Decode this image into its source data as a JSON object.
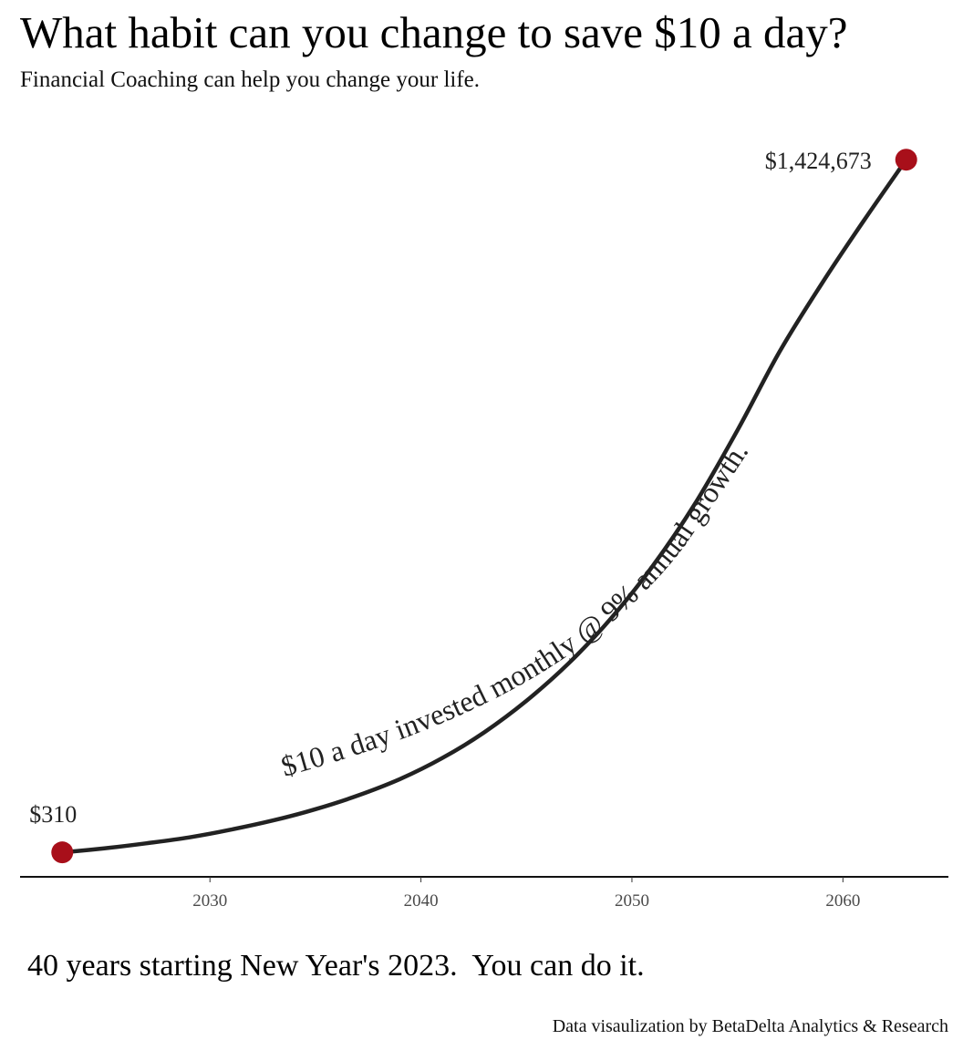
{
  "page": {
    "title": "What habit can you change to save $10 a day?",
    "subtitle": "Financial Coaching can help you change your life.",
    "caption": "40 years starting New Year's 2023.  You can do it.",
    "credit": "Data visaulization by BetaDelta Analytics & Research"
  },
  "chart_data": {
    "type": "line",
    "title": "What habit can you change to save $10 a day?",
    "subtitle": "Financial Coaching can help you change your life.",
    "xlabel": "",
    "ylabel": "",
    "xlim": [
      2021,
      2065
    ],
    "ylim": [
      -50000,
      1500000
    ],
    "x_ticks": [
      2030,
      2040,
      2050,
      2060
    ],
    "x_tick_labels": [
      "2030",
      "2040",
      "2050",
      "2060"
    ],
    "y_axis_visible": false,
    "grid": false,
    "legend": "none",
    "line_color": "#222222",
    "point_color": "#a80f1a",
    "series": [
      {
        "x": [
          2023,
          2025,
          2027,
          2029,
          2031,
          2033,
          2035,
          2037,
          2039,
          2041,
          2043,
          2045,
          2047,
          2049,
          2051,
          2053,
          2055,
          2057,
          2059,
          2061,
          2063
        ],
        "y": [
          310,
          8500,
          19000,
          31000,
          47000,
          66000,
          89000,
          117000,
          151000,
          194000,
          247000,
          312000,
          389000,
          481000,
          590000,
          718000,
          868000,
          1030000,
          1170000,
          1300000,
          1424673
        ]
      }
    ],
    "highlight_points": [
      {
        "x": 2023,
        "y": 310,
        "label": "$310"
      },
      {
        "x": 2063,
        "y": 1424673,
        "label": "$1,424,673"
      }
    ],
    "curve_label": "$10  a day invested monthly @ 9% annual growth."
  }
}
